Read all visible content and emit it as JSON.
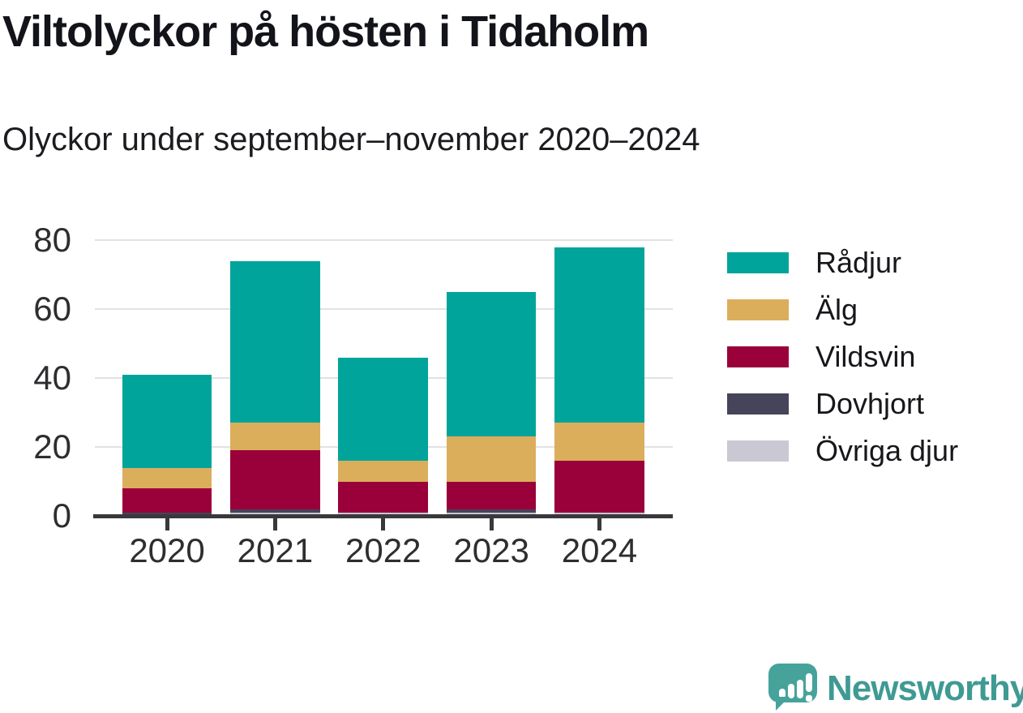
{
  "header": {
    "title": "Viltolyckor på hösten i Tidaholm",
    "subtitle": "Olyckor under september–november 2020–2024"
  },
  "chart_data": {
    "type": "bar",
    "stacked": true,
    "title": "Viltolyckor på hösten i Tidaholm",
    "subtitle": "Olyckor under september–november 2020–2024",
    "categories": [
      "2020",
      "2021",
      "2022",
      "2023",
      "2024"
    ],
    "series": [
      {
        "name": "Rådjur",
        "color": "#00a49b",
        "values": [
          27,
          47,
          30,
          42,
          51
        ]
      },
      {
        "name": "Älg",
        "color": "#dbae5c",
        "values": [
          6,
          8,
          6,
          13,
          11
        ]
      },
      {
        "name": "Vildsvin",
        "color": "#9a0039",
        "values": [
          7,
          17,
          9,
          8,
          15
        ]
      },
      {
        "name": "Dovhjort",
        "color": "#45445a",
        "values": [
          1,
          1,
          0,
          1,
          0
        ]
      },
      {
        "name": "Övriga djur",
        "color": "#c9c8d3",
        "values": [
          0,
          1,
          1,
          1,
          1
        ]
      }
    ],
    "totals": [
      41,
      74,
      46,
      65,
      78
    ],
    "xlabel": "",
    "ylabel": "",
    "yticks": [
      0,
      20,
      40,
      60,
      80
    ],
    "ylim": [
      0,
      80
    ],
    "grid": "horizontal",
    "legend_position": "right",
    "axis_color": "#39393c",
    "gridline_color": "#e2e2e2"
  },
  "branding": {
    "logo_text": "Newsworthy",
    "logo_icon": "bar-chart-speech-bubble-icon",
    "logo_color": "#3f9a93"
  }
}
